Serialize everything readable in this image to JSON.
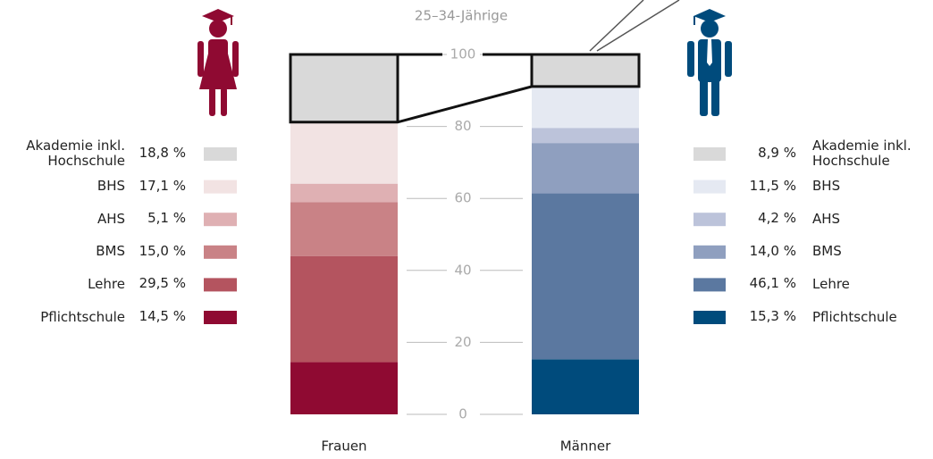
{
  "chart_data": {
    "type": "stacked-bar",
    "subtitle": "25–34-Jährige",
    "categories": [
      "Frauen",
      "Männer"
    ],
    "ylim": [
      0,
      100
    ],
    "yticks": [
      0,
      20,
      40,
      60,
      80,
      100
    ],
    "series": [
      {
        "name": "Pflichtschule",
        "colors": [
          "#8f0a32",
          "#004b7c"
        ],
        "values": [
          14.5,
          15.3
        ],
        "value_labels": [
          "14,5 %",
          "15,3 %"
        ]
      },
      {
        "name": "Lehre",
        "colors": [
          "#b4545f",
          "#5b78a0"
        ],
        "values": [
          29.5,
          46.1
        ],
        "value_labels": [
          "29,5 %",
          "46,1 %"
        ]
      },
      {
        "name": "BMS",
        "colors": [
          "#c98286",
          "#8f9fbf"
        ],
        "values": [
          15.0,
          14.0
        ],
        "value_labels": [
          "15,0 %",
          "14,0 %"
        ]
      },
      {
        "name": "AHS",
        "colors": [
          "#dfb0b3",
          "#bcc3da"
        ],
        "values": [
          5.1,
          4.2
        ],
        "value_labels": [
          "5,1 %",
          "4,2 %"
        ]
      },
      {
        "name": "BHS",
        "colors": [
          "#f2e3e3",
          "#e5e9f2"
        ],
        "values": [
          17.1,
          11.5
        ],
        "value_labels": [
          "17,1 %",
          "11,5 %"
        ]
      },
      {
        "name": "Akademie inkl. Hochschule",
        "colors": [
          "#d9d9d9",
          "#d9d9d9"
        ],
        "values": [
          18.8,
          8.9
        ],
        "value_labels": [
          "18,8 %",
          "8,9 %"
        ]
      }
    ]
  }
}
